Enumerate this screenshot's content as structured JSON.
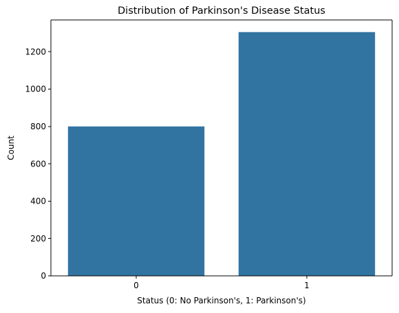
{
  "chart_data": {
    "type": "bar",
    "title": "Distribution of Parkinson's Disease Status",
    "xlabel": "Status (0: No Parkinson's, 1: Parkinson's)",
    "ylabel": "Count",
    "categories": [
      "0",
      "1"
    ],
    "values": [
      800,
      1305
    ],
    "ylim": [
      0,
      1370
    ],
    "yticks": [
      0,
      200,
      400,
      600,
      800,
      1000,
      1200
    ],
    "bar_color": "#3274a1",
    "grid": false,
    "legend": "none"
  }
}
